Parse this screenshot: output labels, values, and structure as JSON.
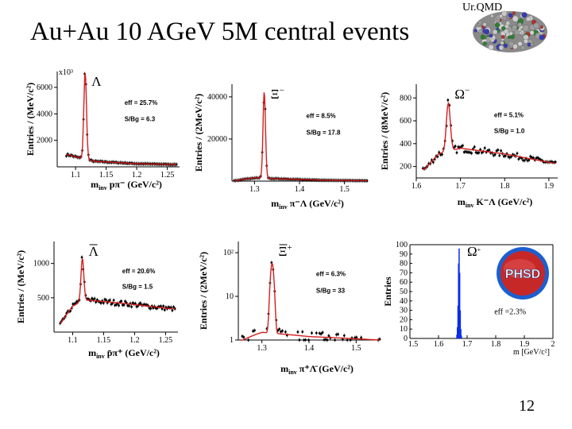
{
  "title": "Au+Au 10 AGeV 5M central events",
  "model_label": "Ur.QMD",
  "page_number": "12",
  "phsd_logo_text": "PHSD",
  "colors": {
    "fit": "#d21f1f",
    "data": "#000000",
    "phsd_bar": "#0a2ee8",
    "phsd_logo_red": "#c62828",
    "phsd_logo_blue": "#1b5fd0"
  },
  "chart_data": [
    {
      "id": "lambda-urqmd",
      "type": "scatter",
      "particle": "Λ",
      "particle_bar": false,
      "particle_sign": "",
      "ylabel": "Entries / (MeV/c²)",
      "xlabel": "m_inv pπ⁻ (GeV/c²)",
      "xlabel_parts": [
        "m",
        "inv",
        " pπ⁻  (GeV/c²)"
      ],
      "multiplier": "x10³",
      "xlim": [
        1.07,
        1.27
      ],
      "ylim": [
        0,
        7200
      ],
      "yscale": "linear",
      "xticks": [
        1.1,
        1.15,
        1.2,
        1.25
      ],
      "xtick_labels": [
        "1.1",
        "1.15",
        "1.2",
        "1.25"
      ],
      "yticks": [
        2000,
        4000,
        6000
      ],
      "ytick_labels": [
        "2000",
        "4000",
        "6000"
      ],
      "eff": "eff = 25.7%",
      "sbg": "S/Bg = 6.3",
      "peak": {
        "mean": 1.1157,
        "sigma": 0.0022,
        "height": 6500
      },
      "background": [
        {
          "x": 1.09,
          "y": 900
        },
        {
          "x": 1.1,
          "y": 750
        },
        {
          "x": 1.13,
          "y": 420
        },
        {
          "x": 1.2,
          "y": 240
        },
        {
          "x": 1.26,
          "y": 180
        }
      ],
      "data_range": [
        1.085,
        1.265
      ]
    },
    {
      "id": "xi-minus-urqmd",
      "type": "scatter",
      "particle": "Ξ",
      "particle_bar": false,
      "particle_sign": "−",
      "ylabel": "Entries / (2MeV/c²)",
      "xlabel": "m_inv π⁻Λ (GeV/c²)",
      "xlabel_parts": [
        "m",
        "inv",
        " π⁻Λ  (GeV/c²)"
      ],
      "multiplier": "",
      "xlim": [
        1.25,
        1.55
      ],
      "ylim": [
        0,
        46000
      ],
      "yscale": "linear",
      "xticks": [
        1.3,
        1.4,
        1.5
      ],
      "xtick_labels": [
        "1.3",
        "1.4",
        "1.5"
      ],
      "yticks": [
        20000,
        40000
      ],
      "ytick_labels": [
        "20000",
        "40000"
      ],
      "eff": "eff = 8.5%",
      "sbg": "S/Bg = 17.8",
      "peak": {
        "mean": 1.3217,
        "sigma": 0.0028,
        "height": 41000
      },
      "background": [
        {
          "x": 1.26,
          "y": 300
        },
        {
          "x": 1.3,
          "y": 1600
        },
        {
          "x": 1.34,
          "y": 1200
        },
        {
          "x": 1.45,
          "y": 450
        },
        {
          "x": 1.55,
          "y": 200
        }
      ],
      "data_range": [
        1.255,
        1.55
      ]
    },
    {
      "id": "omega-minus-urqmd",
      "type": "scatter",
      "particle": "Ω",
      "particle_bar": false,
      "particle_sign": "−",
      "ylabel": "Entries / (8MeV/c²)",
      "xlabel": "m_inv K⁻Λ (GeV/c²)",
      "xlabel_parts": [
        "m",
        "inv",
        " K⁻Λ  (GeV/c²)"
      ],
      "multiplier": "",
      "xlim": [
        1.6,
        1.92
      ],
      "ylim": [
        100,
        920
      ],
      "yscale": "linear",
      "xticks": [
        1.6,
        1.7,
        1.8,
        1.9
      ],
      "xtick_labels": [
        "1.6",
        "1.7",
        "1.8",
        "1.9"
      ],
      "yticks": [
        200,
        400,
        600,
        800
      ],
      "ytick_labels": [
        "200",
        "400",
        "600",
        "800"
      ],
      "eff": "eff = 5.1%",
      "sbg": "S/Bg = 1.0",
      "peak": {
        "mean": 1.6725,
        "sigma": 0.0045,
        "height": 420
      },
      "background": [
        {
          "x": 1.62,
          "y": 180
        },
        {
          "x": 1.65,
          "y": 310
        },
        {
          "x": 1.7,
          "y": 360
        },
        {
          "x": 1.8,
          "y": 310
        },
        {
          "x": 1.91,
          "y": 230
        }
      ],
      "data_range": [
        1.615,
        1.915
      ]
    },
    {
      "id": "antilambda-urqmd",
      "type": "scatter",
      "particle": "Λ",
      "particle_bar": true,
      "particle_sign": "",
      "ylabel": "Entries / (MeV/c²)",
      "xlabel": "m_inv p̄π⁺ (GeV/c²)",
      "xlabel_parts": [
        "m",
        "inv",
        " p̄π⁺  (GeV/c²)"
      ],
      "multiplier": "",
      "xlim": [
        1.07,
        1.27
      ],
      "ylim": [
        0,
        1320
      ],
      "yscale": "linear",
      "xticks": [
        1.1,
        1.15,
        1.2,
        1.25
      ],
      "xtick_labels": [
        "1.1",
        "1.15",
        "1.2",
        "1.25"
      ],
      "yticks": [
        500,
        1000
      ],
      "ytick_labels": [
        "500",
        "1000"
      ],
      "eff": "eff = 20.6%",
      "sbg": "S/Bg = 1.5",
      "peak": {
        "mean": 1.1157,
        "sigma": 0.0023,
        "height": 620
      },
      "background": [
        {
          "x": 1.08,
          "y": 120
        },
        {
          "x": 1.1,
          "y": 380
        },
        {
          "x": 1.12,
          "y": 470
        },
        {
          "x": 1.18,
          "y": 420
        },
        {
          "x": 1.26,
          "y": 340
        }
      ],
      "data_range": [
        1.08,
        1.265
      ]
    },
    {
      "id": "antixi-plus-urqmd",
      "type": "scatter",
      "particle": "Ξ",
      "particle_bar": true,
      "particle_sign": "+",
      "ylabel": "Entries / (2MeV/c²)",
      "xlabel": "m_inv π⁺Λ̄ (GeV/c²)",
      "xlabel_parts": [
        "m",
        "inv",
        " π⁺Λ̄  (GeV/c²)"
      ],
      "multiplier": "",
      "xlim": [
        1.25,
        1.55
      ],
      "ylim": [
        1,
        180
      ],
      "yscale": "log",
      "xticks": [
        1.3,
        1.4,
        1.5
      ],
      "xtick_labels": [
        "1.3",
        "1.4",
        "1.5"
      ],
      "yticks": [
        1,
        10,
        100
      ],
      "ytick_labels": [
        "1",
        "10",
        "10²"
      ],
      "eff": "eff = 6.3%",
      "sbg": "S/Bg = 33",
      "peak": {
        "mean": 1.3217,
        "sigma": 0.003,
        "height": 55
      },
      "background": [
        {
          "x": 1.26,
          "y": 1
        },
        {
          "x": 1.3,
          "y": 1.5
        },
        {
          "x": 1.4,
          "y": 1.2
        },
        {
          "x": 1.55,
          "y": 1
        }
      ],
      "data_range": [
        1.255,
        1.55
      ]
    },
    {
      "id": "antiomega-plus-phsd",
      "type": "bar",
      "particle": "Ω",
      "particle_bar": false,
      "particle_sign": "+",
      "ylabel": "Entries",
      "xlabel": "m [GeV/c²]",
      "xlim": [
        1.5,
        2.0
      ],
      "ylim": [
        0,
        100
      ],
      "yscale": "linear",
      "xticks": [
        1.6,
        1.7,
        1.8,
        1.9,
        2.0
      ],
      "xtick_labels": [
        "1.6",
        "1.7",
        "1.8",
        "1.9",
        "2"
      ],
      "minor_xtick_labels": [
        {
          "x": 1.5,
          "label": "1.5"
        }
      ],
      "yticks": [
        0,
        10,
        20,
        30,
        40,
        50,
        60,
        70,
        80,
        90,
        100
      ],
      "ytick_labels": [
        "0",
        "10",
        "20",
        "30",
        "40",
        "50",
        "60",
        "70",
        "80",
        "90",
        "100"
      ],
      "eff": "eff =2.3%",
      "bars": [
        {
          "x": 1.664,
          "y": 4
        },
        {
          "x": 1.666,
          "y": 12
        },
        {
          "x": 1.668,
          "y": 35
        },
        {
          "x": 1.67,
          "y": 80
        },
        {
          "x": 1.672,
          "y": 96
        },
        {
          "x": 1.674,
          "y": 70
        },
        {
          "x": 1.676,
          "y": 30
        },
        {
          "x": 1.678,
          "y": 10
        },
        {
          "x": 1.68,
          "y": 3
        }
      ]
    }
  ]
}
